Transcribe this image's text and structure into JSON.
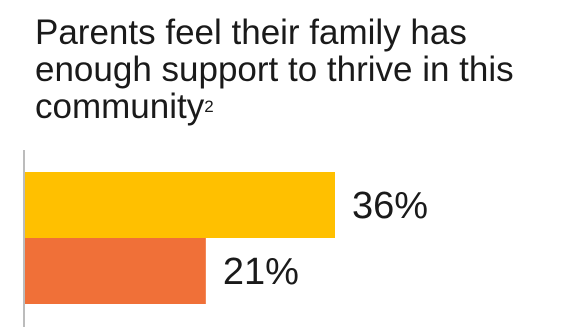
{
  "chart_data": {
    "type": "bar",
    "orientation": "horizontal",
    "title": "Parents feel their family has enough support to thrive in this community",
    "title_superscript": "2",
    "categories": [
      "",
      ""
    ],
    "series": [
      {
        "values": [
          36,
          21
        ]
      }
    ],
    "data_labels": [
      "36%",
      "21%"
    ],
    "bar_colors": [
      "#FFC000",
      "#F07038"
    ],
    "axis_color": "#A6A6A6",
    "xlim": [
      0,
      36
    ],
    "grid": false,
    "legend": "none"
  }
}
